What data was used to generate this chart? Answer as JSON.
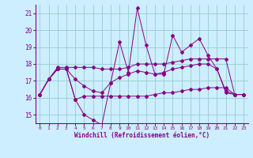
{
  "xlabel": "Windchill (Refroidissement éolien,°C)",
  "background_color": "#cceeff",
  "line_color": "#880088",
  "grid_color": "#99cccc",
  "xlim": [
    -0.5,
    23.5
  ],
  "ylim": [
    14.5,
    21.5
  ],
  "yticks": [
    15,
    16,
    17,
    18,
    19,
    20,
    21
  ],
  "xticks": [
    0,
    1,
    2,
    3,
    4,
    5,
    6,
    7,
    8,
    9,
    10,
    11,
    12,
    13,
    14,
    15,
    16,
    17,
    18,
    19,
    20,
    21,
    22,
    23
  ],
  "series_volatile": [
    16.2,
    17.1,
    17.7,
    17.7,
    15.9,
    15.0,
    14.7,
    14.4,
    16.9,
    19.3,
    17.5,
    21.3,
    19.1,
    17.4,
    17.4,
    19.7,
    18.7,
    19.1,
    19.5,
    18.5,
    17.7,
    16.3,
    16.2,
    16.2
  ],
  "series_low": [
    16.2,
    17.1,
    17.7,
    17.7,
    15.9,
    16.1,
    16.1,
    16.1,
    16.1,
    16.1,
    16.1,
    16.1,
    16.1,
    16.2,
    16.3,
    16.3,
    16.4,
    16.5,
    16.5,
    16.6,
    16.6,
    16.6,
    16.2,
    16.2
  ],
  "series_high": [
    16.2,
    17.1,
    17.8,
    17.8,
    17.8,
    17.8,
    17.8,
    17.7,
    17.7,
    17.7,
    17.8,
    18.0,
    18.0,
    18.0,
    18.0,
    18.1,
    18.2,
    18.3,
    18.3,
    18.3,
    18.3,
    18.3,
    16.2,
    16.2
  ],
  "series_mid": [
    16.2,
    17.1,
    17.7,
    17.7,
    17.1,
    16.7,
    16.4,
    16.3,
    16.9,
    17.2,
    17.4,
    17.6,
    17.5,
    17.4,
    17.5,
    17.7,
    17.8,
    17.9,
    18.0,
    18.0,
    17.7,
    16.4,
    16.2,
    16.2
  ]
}
